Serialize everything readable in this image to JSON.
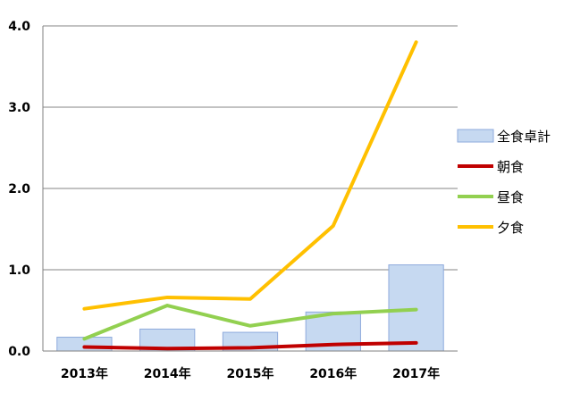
{
  "chart_data": {
    "type": "bar",
    "categories": [
      "2013年",
      "2014年",
      "2015年",
      "2016年",
      "2017年"
    ],
    "ylim": [
      0,
      4.0
    ],
    "yticks": [
      "0.0",
      "1.0",
      "2.0",
      "3.0",
      "4.0"
    ],
    "grid": true,
    "legend_position": "right",
    "series": [
      {
        "name": "全食卓計",
        "kind": "bar",
        "color": "#c6d9f1",
        "border": "#8eaadc",
        "values": [
          0.17,
          0.27,
          0.23,
          0.48,
          1.06
        ]
      },
      {
        "name": "朝食",
        "kind": "line",
        "color": "#c00000",
        "values": [
          0.05,
          0.03,
          0.04,
          0.08,
          0.1
        ]
      },
      {
        "name": "昼食",
        "kind": "line",
        "color": "#92d050",
        "values": [
          0.15,
          0.56,
          0.31,
          0.46,
          0.51
        ]
      },
      {
        "name": "夕食",
        "kind": "line",
        "color": "#ffc000",
        "values": [
          0.52,
          0.66,
          0.64,
          1.54,
          3.8
        ]
      }
    ]
  }
}
